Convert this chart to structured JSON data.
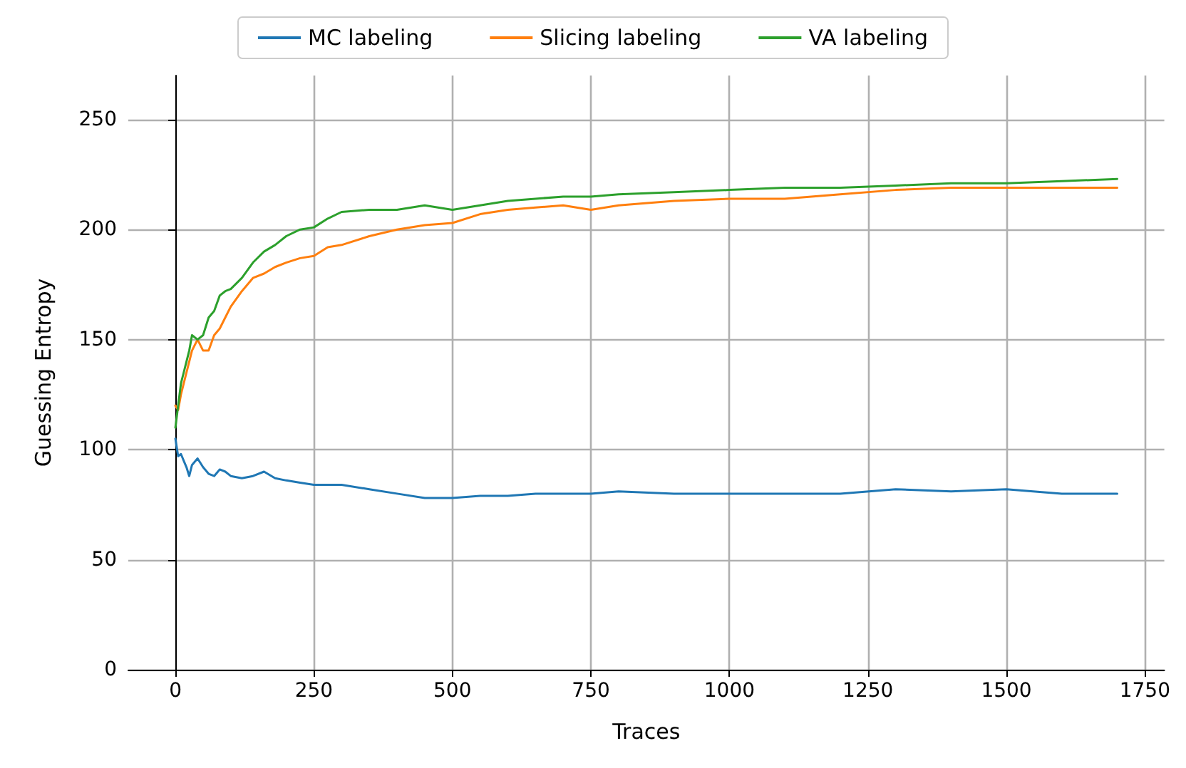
{
  "chart_data": {
    "type": "line",
    "xlabel": "Traces",
    "ylabel": "Guessing Entropy",
    "x": [
      0,
      5,
      10,
      15,
      20,
      25,
      30,
      40,
      50,
      60,
      70,
      80,
      90,
      100,
      120,
      140,
      160,
      180,
      200,
      225,
      250,
      275,
      300,
      350,
      400,
      450,
      500,
      550,
      600,
      650,
      700,
      750,
      800,
      900,
      1000,
      1100,
      1200,
      1300,
      1400,
      1500,
      1600,
      1700
    ],
    "series": [
      {
        "name": "MC labeling",
        "color": "#1f77b4",
        "values": [
          105,
          97,
          98,
          95,
          92,
          88,
          93,
          96,
          92,
          89,
          88,
          91,
          90,
          88,
          87,
          88,
          90,
          87,
          86,
          85,
          84,
          84,
          84,
          82,
          80,
          78,
          78,
          79,
          79,
          80,
          80,
          80,
          81,
          80,
          80,
          80,
          80,
          82,
          81,
          82,
          80,
          80
        ]
      },
      {
        "name": "Slicing labeling",
        "color": "#ff7f0e",
        "values": [
          120,
          118,
          125,
          130,
          135,
          140,
          145,
          150,
          145,
          145,
          152,
          155,
          160,
          165,
          172,
          178,
          180,
          183,
          185,
          187,
          188,
          192,
          193,
          197,
          200,
          202,
          203,
          207,
          209,
          210,
          211,
          209,
          211,
          213,
          214,
          214,
          216,
          218,
          219,
          219,
          219,
          219
        ]
      },
      {
        "name": "VA labeling",
        "color": "#2ca02c",
        "values": [
          110,
          120,
          130,
          135,
          140,
          145,
          152,
          150,
          152,
          160,
          163,
          170,
          172,
          173,
          178,
          185,
          190,
          193,
          197,
          200,
          201,
          205,
          208,
          209,
          209,
          211,
          209,
          211,
          213,
          214,
          215,
          215,
          216,
          217,
          218,
          219,
          219,
          220,
          221,
          221,
          222,
          223
        ]
      }
    ],
    "xlim": [
      -85,
      1785
    ],
    "xticks": [
      0,
      250,
      500,
      750,
      1000,
      1250,
      1500,
      1750
    ],
    "ylim": [
      0,
      270
    ],
    "yticks": [
      0,
      50,
      100,
      150,
      200,
      250
    ],
    "grid": true,
    "legend": "top",
    "marker": "none",
    "line_style": "solid"
  }
}
